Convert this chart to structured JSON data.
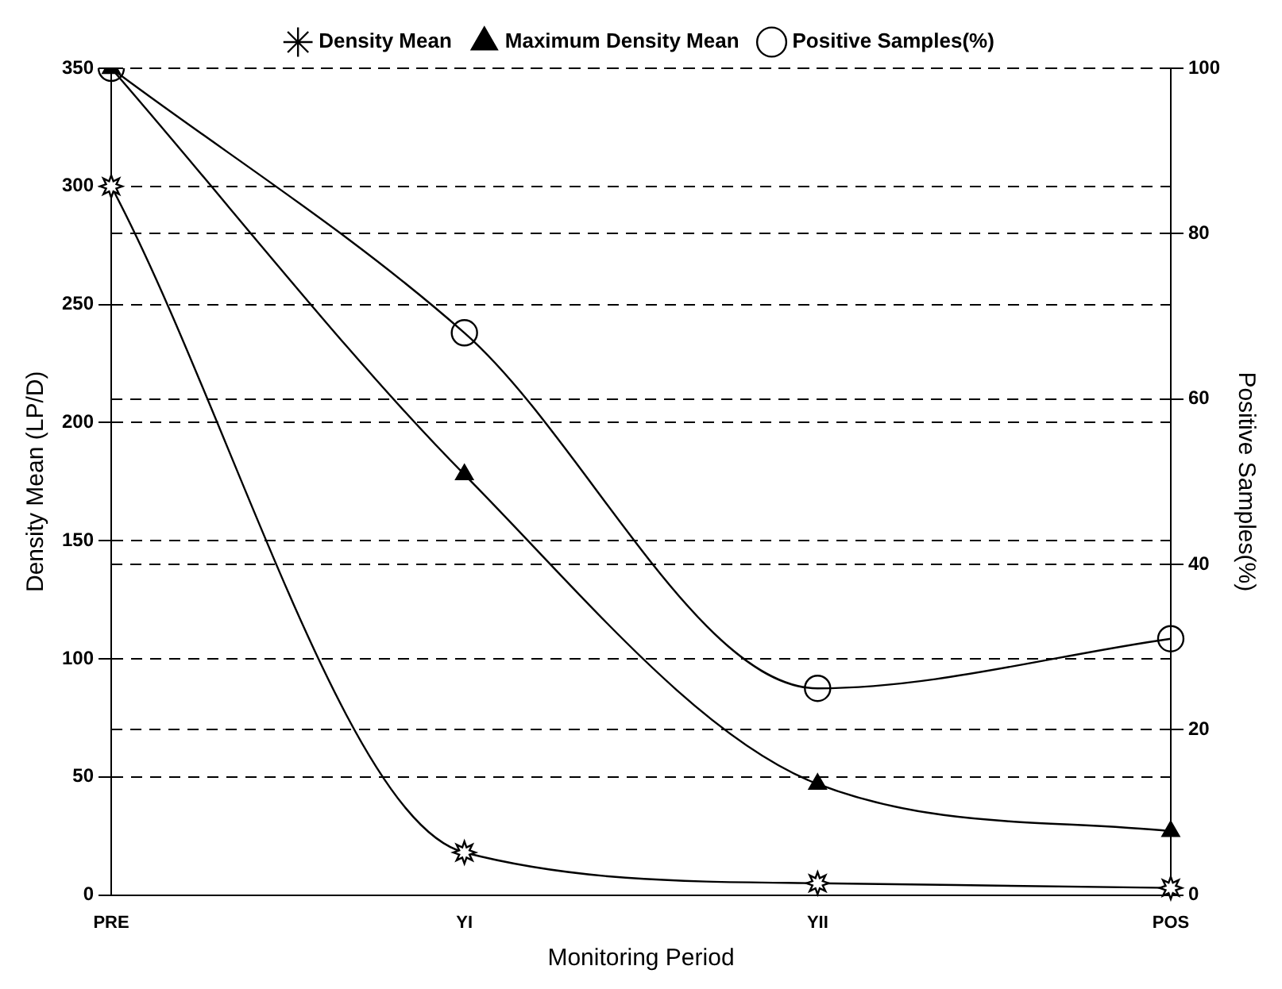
{
  "chart_data": {
    "type": "line",
    "xlabel": "Monitoring Period",
    "ylabel": "Density Mean (LP/D)",
    "y2label": "Positive Samples(%)",
    "categories": [
      "PRE",
      "YI",
      "YII",
      "POS"
    ],
    "series": [
      {
        "name": "Density Mean",
        "color": "#000000",
        "marker": "star",
        "values": [
          300,
          18,
          5,
          3
        ]
      },
      {
        "name": "Maximum Density Mean",
        "color": "#000000",
        "marker": "triangle",
        "values": [
          350,
          178,
          47,
          27
        ]
      },
      {
        "name": "Positive Samples(%)",
        "color": "#000000",
        "marker": "circle",
        "axis": "y2",
        "values": [
          100,
          68,
          25,
          31
        ]
      }
    ],
    "ylim": [
      0,
      350
    ],
    "yticks": [
      0,
      50,
      100,
      150,
      200,
      250,
      300,
      350
    ],
    "y2lim": [
      0,
      100
    ],
    "y2ticks": [
      0,
      20,
      40,
      60,
      80,
      100
    ],
    "grid": "y",
    "legend": "top",
    "line_style": "solid"
  }
}
